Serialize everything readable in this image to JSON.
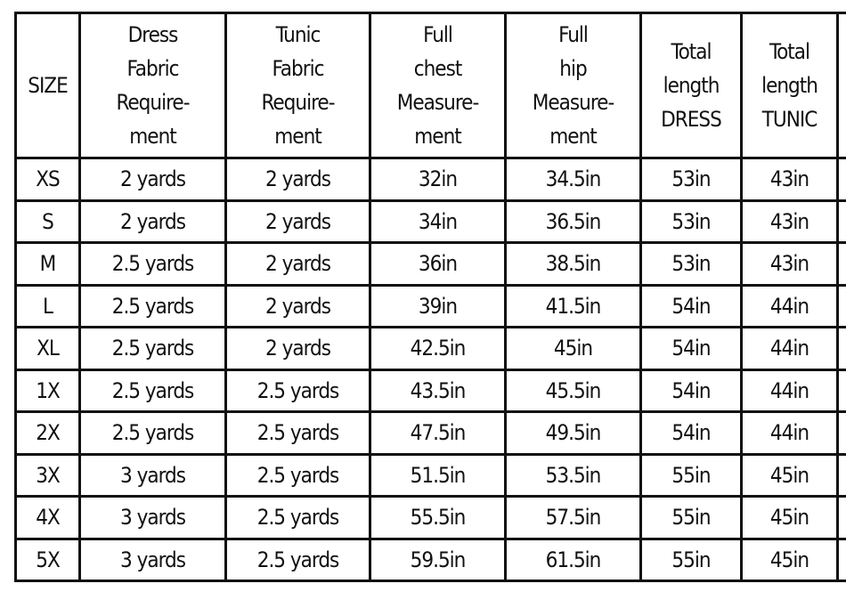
{
  "table": {
    "header": [
      "SIZE",
      "Dress\nFabric\nRequire-\nment",
      "Tunic\nFabric\nRequire-\nment",
      "Full\nchest\nMeasure-\nment",
      "Full\nhip\nMeasure-\nment",
      "Total\nlength\nDRESS",
      "Total\nlength\nTUNIC"
    ],
    "rows": [
      [
        "XS",
        "2 yards",
        "2 yards",
        "32in",
        "34.5in",
        "53in",
        "43in"
      ],
      [
        "S",
        "2 yards",
        "2 yards",
        "34in",
        "36.5in",
        "53in",
        "43in"
      ],
      [
        "M",
        "2.5 yards",
        "2 yards",
        "36in",
        "38.5in",
        "53in",
        "43in"
      ],
      [
        "L",
        "2.5 yards",
        "2 yards",
        "39in",
        "41.5in",
        "54in",
        "44in"
      ],
      [
        "XL",
        "2.5 yards",
        "2 yards",
        "42.5in",
        "45in",
        "54in",
        "44in"
      ],
      [
        "1X",
        "2.5 yards",
        "2.5 yards",
        "43.5in",
        "45.5in",
        "54in",
        "44in"
      ],
      [
        "2X",
        "2.5 yards",
        "2.5 yards",
        "47.5in",
        "49.5in",
        "54in",
        "44in"
      ],
      [
        "3X",
        "3 yards",
        "2.5 yards",
        "51.5in",
        "53.5in",
        "55in",
        "45in"
      ],
      [
        "4X",
        "3 yards",
        "2.5 yards",
        "55.5in",
        "57.5in",
        "55in",
        "45in"
      ],
      [
        "5X",
        "3 yards",
        "2.5 yards",
        "59.5in",
        "61.5in",
        "55in",
        "45in"
      ]
    ]
  }
}
